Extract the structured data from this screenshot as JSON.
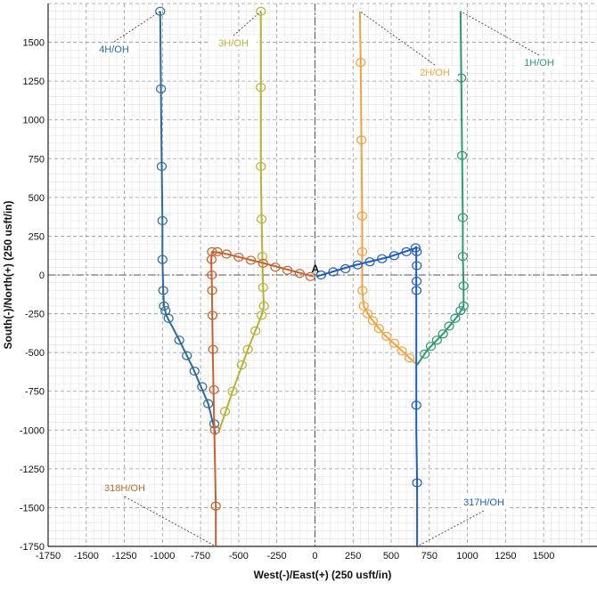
{
  "chart_data": {
    "type": "line",
    "xlabel": "West(-)/East(+) (250 usft/in)",
    "ylabel": "South(-)/North(+) (250 usft/in)",
    "xlim": [
      -1750,
      1850
    ],
    "ylim": [
      -1750,
      1750
    ],
    "xticks": [
      -1750,
      -1500,
      -1250,
      -1000,
      -750,
      -500,
      -250,
      0,
      250,
      500,
      750,
      1000,
      1250,
      1500
    ],
    "yticks": [
      1500,
      1250,
      1000,
      750,
      500,
      250,
      0,
      -250,
      -500,
      -750,
      -1000,
      -1250,
      -1500,
      -1750
    ],
    "grid": true,
    "origin_marker": "A",
    "series": [
      {
        "name": "4H/OH",
        "color": "#2b6b9c",
        "points": [
          [
            -1015,
            1700
          ],
          [
            -1010,
            1200
          ],
          [
            -1005,
            700
          ],
          [
            -1000,
            350
          ],
          [
            -1000,
            100
          ],
          [
            -995,
            -100
          ],
          [
            -990,
            -200
          ],
          [
            -975,
            -260
          ],
          [
            -900,
            -400
          ],
          [
            -800,
            -600
          ],
          [
            -700,
            -830
          ],
          [
            -650,
            -1030
          ]
        ],
        "markers": [
          [
            -1015,
            1700
          ],
          [
            -1010,
            1200
          ],
          [
            -1005,
            700
          ],
          [
            -1000,
            350
          ],
          [
            -1000,
            100
          ],
          [
            -995,
            -100
          ],
          [
            -990,
            -200
          ],
          [
            -980,
            -230
          ],
          [
            -960,
            -280
          ],
          [
            -890,
            -420
          ],
          [
            -840,
            -520
          ],
          [
            -790,
            -620
          ],
          [
            -740,
            -720
          ],
          [
            -700,
            -830
          ],
          [
            -660,
            -960
          ]
        ]
      },
      {
        "name": "3H/OH",
        "color": "#b5b334",
        "points": [
          [
            -355,
            1700
          ],
          [
            -355,
            1210
          ],
          [
            -355,
            700
          ],
          [
            -350,
            360
          ],
          [
            -345,
            120
          ],
          [
            -340,
            -80
          ],
          [
            -335,
            -200
          ],
          [
            -350,
            -260
          ],
          [
            -440,
            -480
          ],
          [
            -540,
            -750
          ],
          [
            -630,
            -1010
          ]
        ],
        "markers": [
          [
            -355,
            1700
          ],
          [
            -355,
            1210
          ],
          [
            -355,
            700
          ],
          [
            -350,
            360
          ],
          [
            -345,
            120
          ],
          [
            -340,
            -80
          ],
          [
            -335,
            -200
          ],
          [
            -350,
            -260
          ],
          [
            -390,
            -360
          ],
          [
            -440,
            -480
          ],
          [
            -480,
            -580
          ],
          [
            -540,
            -750
          ],
          [
            -590,
            -880
          ]
        ]
      },
      {
        "name": "2H/OH",
        "color": "#f0a23b",
        "points": [
          [
            295,
            1700
          ],
          [
            300,
            1370
          ],
          [
            305,
            870
          ],
          [
            310,
            380
          ],
          [
            310,
            150
          ],
          [
            310,
            -100
          ],
          [
            320,
            -200
          ],
          [
            360,
            -270
          ],
          [
            450,
            -380
          ],
          [
            560,
            -480
          ],
          [
            660,
            -570
          ]
        ],
        "markers": [
          [
            300,
            1370
          ],
          [
            305,
            870
          ],
          [
            310,
            380
          ],
          [
            310,
            150
          ],
          [
            312,
            -100
          ],
          [
            320,
            -200
          ],
          [
            345,
            -250
          ],
          [
            380,
            -295
          ],
          [
            420,
            -345
          ],
          [
            470,
            -395
          ],
          [
            520,
            -440
          ],
          [
            570,
            -490
          ],
          [
            620,
            -535
          ]
        ]
      },
      {
        "name": "1H/OH",
        "color": "#2e9a6e",
        "points": [
          [
            955,
            1700
          ],
          [
            960,
            1270
          ],
          [
            965,
            770
          ],
          [
            970,
            370
          ],
          [
            970,
            120
          ],
          [
            975,
            -70
          ],
          [
            975,
            -200
          ],
          [
            940,
            -260
          ],
          [
            840,
            -380
          ],
          [
            740,
            -480
          ],
          [
            670,
            -580
          ]
        ],
        "markers": [
          [
            960,
            1270
          ],
          [
            965,
            770
          ],
          [
            970,
            370
          ],
          [
            970,
            120
          ],
          [
            975,
            -70
          ],
          [
            975,
            -200
          ],
          [
            955,
            -230
          ],
          [
            920,
            -280
          ],
          [
            880,
            -330
          ],
          [
            840,
            -380
          ],
          [
            800,
            -420
          ],
          [
            760,
            -460
          ],
          [
            720,
            -510
          ]
        ]
      },
      {
        "name": "318H/OH",
        "color": "#c7622d",
        "points": [
          [
            -10,
            -10
          ],
          [
            -350,
            80
          ],
          [
            -600,
            140
          ],
          [
            -675,
            150
          ],
          [
            -680,
            100
          ],
          [
            -675,
            -100
          ],
          [
            -670,
            -500
          ],
          [
            -660,
            -1000
          ],
          [
            -650,
            -1490
          ],
          [
            -650,
            -1750
          ]
        ],
        "markers": [
          [
            -30,
            -10
          ],
          [
            -100,
            10
          ],
          [
            -180,
            30
          ],
          [
            -260,
            50
          ],
          [
            -340,
            75
          ],
          [
            -420,
            95
          ],
          [
            -500,
            115
          ],
          [
            -580,
            135
          ],
          [
            -640,
            150
          ],
          [
            -675,
            150
          ],
          [
            -678,
            100
          ],
          [
            -676,
            0
          ],
          [
            -674,
            -100
          ],
          [
            -672,
            -260
          ],
          [
            -668,
            -480
          ],
          [
            -662,
            -740
          ],
          [
            -656,
            -1000
          ],
          [
            -650,
            -1490
          ]
        ]
      },
      {
        "name": "317H/OH",
        "color": "#1e5bc6",
        "points": [
          [
            10,
            -10
          ],
          [
            250,
            60
          ],
          [
            480,
            115
          ],
          [
            650,
            170
          ],
          [
            665,
            180
          ],
          [
            665,
            0
          ],
          [
            665,
            -580
          ],
          [
            665,
            -1000
          ],
          [
            670,
            -1340
          ],
          [
            670,
            -1750
          ]
        ],
        "markers": [
          [
            40,
            0
          ],
          [
            120,
            20
          ],
          [
            200,
            40
          ],
          [
            280,
            65
          ],
          [
            360,
            85
          ],
          [
            440,
            105
          ],
          [
            520,
            125
          ],
          [
            600,
            150
          ],
          [
            660,
            175
          ],
          [
            668,
            150
          ],
          [
            668,
            60
          ],
          [
            667,
            -40
          ],
          [
            666,
            -100
          ],
          [
            665,
            -840
          ],
          [
            670,
            -1340
          ]
        ]
      }
    ]
  }
}
